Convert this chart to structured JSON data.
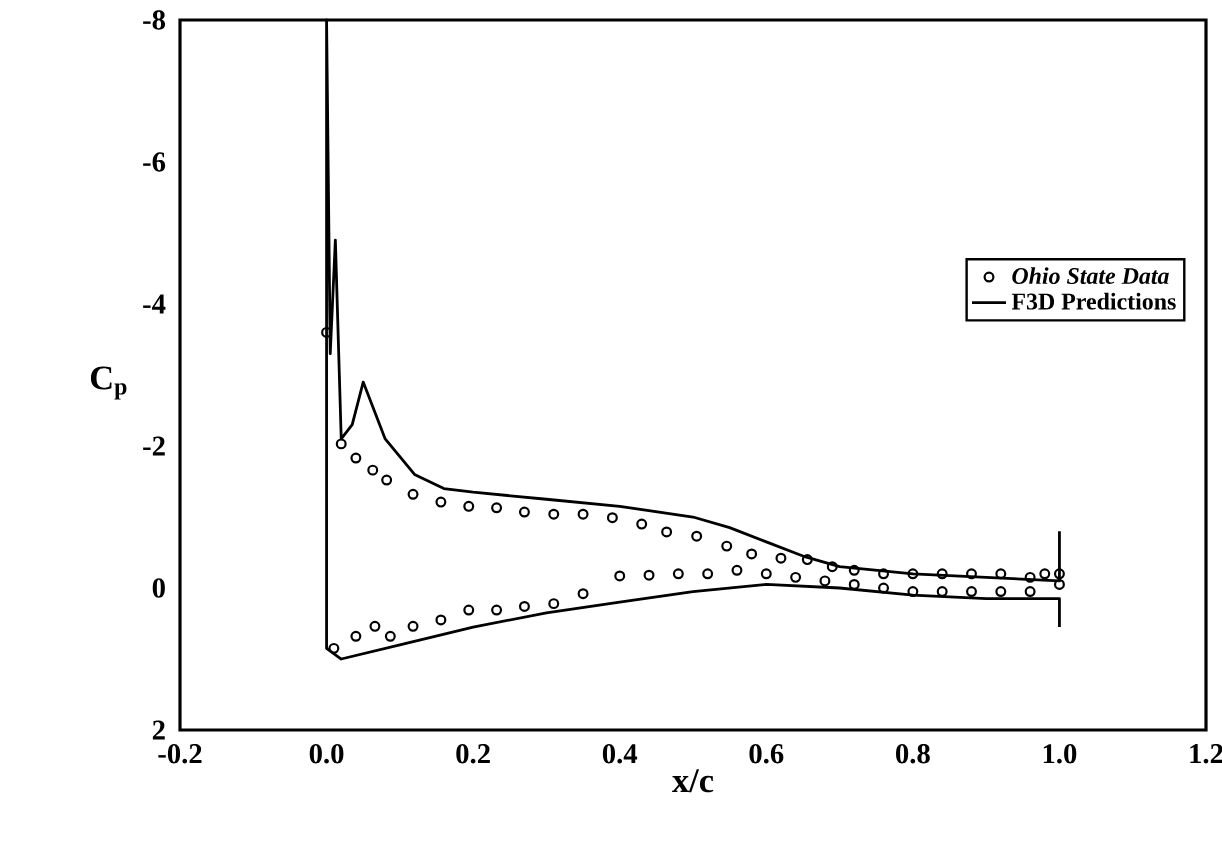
{
  "chart_data": {
    "type": "line",
    "xlabel": "x/c",
    "ylabel": "C$_{p}$",
    "xlim": [
      -0.2,
      1.2
    ],
    "ylim": [
      2,
      -8
    ],
    "xticks": [
      {
        "value": -0.2,
        "label": "-0.2"
      },
      {
        "value": 0,
        "label": "0.0"
      },
      {
        "value": 0.2,
        "label": "0.2"
      },
      {
        "value": 0.4,
        "label": "0.4"
      },
      {
        "value": 0.6,
        "label": "0.6"
      },
      {
        "value": 0.8,
        "label": "0.8"
      },
      {
        "value": 1,
        "label": "1.0"
      },
      {
        "value": 1.2,
        "label": "1.2"
      }
    ],
    "yticks": [
      -8,
      -6,
      -4,
      -2,
      0,
      2
    ],
    "grid": false,
    "legend": "right",
    "series": [
      {
        "name": "Ohio State Data",
        "type": "scatter",
        "marker": "circle",
        "color": "#000000",
        "x": [
          0.0,
          0.02,
          0.04,
          0.063,
          0.082,
          0.118,
          0.156,
          0.194,
          0.232,
          0.27,
          0.31,
          0.35,
          0.39,
          0.43,
          0.464,
          0.505,
          0.546,
          0.58,
          0.62,
          0.656,
          0.69,
          0.72,
          0.76,
          0.8,
          0.84,
          0.88,
          0.92,
          0.96,
          0.98,
          1.0,
          0.01,
          0.04,
          0.066,
          0.087,
          0.118,
          0.156,
          0.194,
          0.232,
          0.27,
          0.31,
          0.35,
          0.4,
          0.44,
          0.48,
          0.52,
          0.56,
          0.6,
          0.64,
          0.68,
          0.72,
          0.76,
          0.8,
          0.84,
          0.88,
          0.92,
          0.96,
          1.0
        ],
        "values": [
          -3.6,
          -2.03,
          -1.83,
          -1.66,
          -1.52,
          -1.32,
          -1.21,
          -1.15,
          -1.13,
          -1.07,
          -1.04,
          -1.04,
          -0.99,
          -0.9,
          -0.79,
          -0.73,
          -0.59,
          -0.48,
          -0.42,
          -0.4,
          -0.3,
          -0.25,
          -0.2,
          -0.2,
          -0.2,
          -0.2,
          -0.2,
          -0.15,
          -0.2,
          -0.2,
          0.85,
          0.68,
          0.54,
          0.68,
          0.54,
          0.45,
          0.31,
          0.31,
          0.26,
          0.22,
          0.08,
          -0.17,
          -0.18,
          -0.2,
          -0.2,
          -0.25,
          -0.2,
          -0.15,
          -0.1,
          -0.05,
          0.0,
          0.05,
          0.05,
          0.05,
          0.05,
          0.05,
          -0.05
        ]
      },
      {
        "name": "F3D Predictions",
        "marker": "none",
        "line_style": "solid",
        "color": "#000000",
        "x": [
          1.0,
          1.0,
          0.9,
          0.8,
          0.7,
          0.65,
          0.6,
          0.55,
          0.5,
          0.4,
          0.3,
          0.2,
          0.16,
          0.12,
          0.08,
          0.05,
          0.035,
          0.02,
          0.012,
          0.005,
          0.0,
          0.0,
          0.02,
          0.1,
          0.2,
          0.3,
          0.4,
          0.5,
          0.6,
          0.7,
          0.8,
          0.9,
          1.0,
          1.0
        ],
        "values": [
          -0.8,
          -0.1,
          -0.15,
          -0.2,
          -0.3,
          -0.45,
          -0.65,
          -0.85,
          -1.0,
          -1.15,
          -1.25,
          -1.35,
          -1.4,
          -1.6,
          -2.1,
          -2.9,
          -2.3,
          -2.1,
          -4.9,
          -3.3,
          -8,
          0.85,
          1.0,
          0.8,
          0.55,
          0.35,
          0.2,
          0.05,
          -0.05,
          0.0,
          0.1,
          0.15,
          0.15,
          0.55
        ]
      }
    ]
  }
}
